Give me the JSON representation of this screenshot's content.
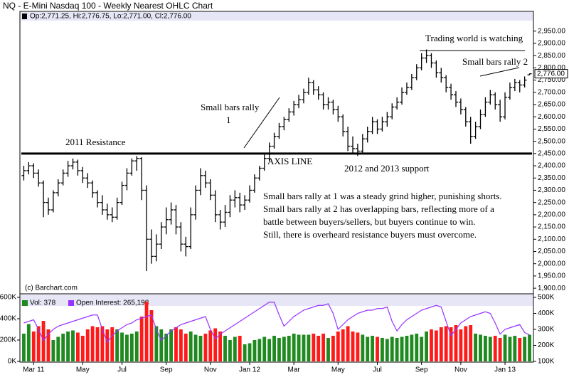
{
  "chart_data": {
    "type": "ohlc",
    "title": "NQ - E-Mini Nasdaq 100 - Weekly Nearest OHLC Chart",
    "info": "Op:2,771.25, Hi:2,776.75, Lo:2,771.00, Cl:2,776.00",
    "credit": "(c) Barchart.com",
    "color": "#000000",
    "ylim": [
      1880,
      2990
    ],
    "yticks": [
      {
        "value": 1900,
        "label": "1,900.00"
      },
      {
        "value": 1950,
        "label": "1,950.00"
      },
      {
        "value": 2000,
        "label": "2,000.00"
      },
      {
        "value": 2050,
        "label": "2,050.00"
      },
      {
        "value": 2100,
        "label": "2,100.00"
      },
      {
        "value": 2150,
        "label": "2,150.00"
      },
      {
        "value": 2200,
        "label": "2,200.00"
      },
      {
        "value": 2250,
        "label": "2,250.00"
      },
      {
        "value": 2300,
        "label": "2,300.00"
      },
      {
        "value": 2350,
        "label": "2,350.00"
      },
      {
        "value": 2400,
        "label": "2,400.00"
      },
      {
        "value": 2450,
        "label": "2,450.00"
      },
      {
        "value": 2500,
        "label": "2,500.00"
      },
      {
        "value": 2550,
        "label": "2,550.00"
      },
      {
        "value": 2600,
        "label": "2,600.00"
      },
      {
        "value": 2650,
        "label": "2,650.00"
      },
      {
        "value": 2700,
        "label": "2,700.00"
      },
      {
        "value": 2750,
        "label": "2,750.00"
      },
      {
        "value": 2800,
        "label": "2,800.00"
      },
      {
        "value": 2850,
        "label": "2,850.00"
      },
      {
        "value": 2900,
        "label": "2,900.00"
      },
      {
        "value": 2950,
        "label": "2,950.00"
      }
    ],
    "last_label": "2,776.00",
    "xticks": [
      {
        "value": 2,
        "label": "Mar 11"
      },
      {
        "value": 12,
        "label": "May"
      },
      {
        "value": 20,
        "label": "Jul"
      },
      {
        "value": 29,
        "label": "Sep"
      },
      {
        "value": 38,
        "label": "Nov"
      },
      {
        "value": 46,
        "label": "Jan 12"
      },
      {
        "value": 55,
        "label": "Mar"
      },
      {
        "value": 64,
        "label": "May"
      },
      {
        "value": 72,
        "label": "Jul"
      },
      {
        "value": 81,
        "label": "Sep"
      },
      {
        "value": 89,
        "label": "Nov"
      },
      {
        "value": 98,
        "label": "Jan 13"
      }
    ],
    "axis_line": 2450,
    "watch_line": 2870,
    "annotations": [
      "Small bars rally",
      "1",
      "2011 Resistance",
      "AXIS LINE",
      "2012 and 2013 support",
      "Trading world is watching",
      "Small bars rally  2"
    ],
    "note_lines": [
      "Small bars rally at 1 was a steady grind higher, punishing shorts.",
      "Small bars rally at 2 has overlapping bars, reflecting more of a",
      "battle between buyers/sellers, but buyers continue to win.",
      "Still, there is overheard resistance buyers must overcome."
    ],
    "ohlc": [
      [
        2360,
        2400,
        2340,
        2380
      ],
      [
        2380,
        2415,
        2365,
        2400
      ],
      [
        2400,
        2410,
        2350,
        2370
      ],
      [
        2370,
        2385,
        2315,
        2330
      ],
      [
        2330,
        2340,
        2190,
        2250
      ],
      [
        2250,
        2270,
        2200,
        2220
      ],
      [
        2220,
        2300,
        2210,
        2290
      ],
      [
        2290,
        2345,
        2275,
        2330
      ],
      [
        2330,
        2385,
        2320,
        2370
      ],
      [
        2370,
        2420,
        2355,
        2400
      ],
      [
        2400,
        2430,
        2385,
        2415
      ],
      [
        2415,
        2425,
        2360,
        2380
      ],
      [
        2380,
        2395,
        2330,
        2350
      ],
      [
        2350,
        2370,
        2310,
        2330
      ],
      [
        2330,
        2340,
        2270,
        2290
      ],
      [
        2290,
        2300,
        2230,
        2250
      ],
      [
        2250,
        2280,
        2200,
        2220
      ],
      [
        2220,
        2245,
        2180,
        2200
      ],
      [
        2200,
        2230,
        2170,
        2190
      ],
      [
        2190,
        2270,
        2180,
        2250
      ],
      [
        2250,
        2335,
        2240,
        2320
      ],
      [
        2320,
        2390,
        2300,
        2370
      ],
      [
        2370,
        2430,
        2360,
        2420
      ],
      [
        2420,
        2440,
        2380,
        2430
      ],
      [
        2430,
        2435,
        2260,
        2300
      ],
      [
        2300,
        2320,
        1970,
        2100
      ],
      [
        2100,
        2140,
        2000,
        2030
      ],
      [
        2030,
        2120,
        2010,
        2080
      ],
      [
        2080,
        2170,
        2060,
        2150
      ],
      [
        2150,
        2230,
        2120,
        2180
      ],
      [
        2180,
        2250,
        2160,
        2220
      ],
      [
        2220,
        2240,
        2120,
        2150
      ],
      [
        2150,
        2170,
        2050,
        2080
      ],
      [
        2080,
        2110,
        2030,
        2070
      ],
      [
        2070,
        2230,
        2060,
        2200
      ],
      [
        2200,
        2320,
        2180,
        2300
      ],
      [
        2300,
        2390,
        2280,
        2360
      ],
      [
        2360,
        2380,
        2310,
        2330
      ],
      [
        2330,
        2345,
        2260,
        2280
      ],
      [
        2280,
        2300,
        2170,
        2200
      ],
      [
        2200,
        2220,
        2140,
        2170
      ],
      [
        2170,
        2240,
        2150,
        2210
      ],
      [
        2210,
        2280,
        2190,
        2260
      ],
      [
        2260,
        2300,
        2230,
        2270
      ],
      [
        2270,
        2290,
        2210,
        2240
      ],
      [
        2240,
        2280,
        2220,
        2260
      ],
      [
        2260,
        2320,
        2250,
        2300
      ],
      [
        2300,
        2365,
        2290,
        2350
      ],
      [
        2350,
        2400,
        2340,
        2390
      ],
      [
        2390,
        2445,
        2380,
        2430
      ],
      [
        2430,
        2495,
        2420,
        2480
      ],
      [
        2480,
        2535,
        2470,
        2520
      ],
      [
        2520,
        2575,
        2510,
        2560
      ],
      [
        2560,
        2600,
        2545,
        2590
      ],
      [
        2590,
        2635,
        2580,
        2620
      ],
      [
        2620,
        2665,
        2605,
        2650
      ],
      [
        2650,
        2690,
        2635,
        2670
      ],
      [
        2670,
        2715,
        2655,
        2700
      ],
      [
        2700,
        2760,
        2690,
        2740
      ],
      [
        2740,
        2750,
        2690,
        2710
      ],
      [
        2710,
        2725,
        2670,
        2690
      ],
      [
        2690,
        2700,
        2630,
        2650
      ],
      [
        2650,
        2680,
        2630,
        2660
      ],
      [
        2660,
        2670,
        2610,
        2630
      ],
      [
        2630,
        2645,
        2580,
        2600
      ],
      [
        2600,
        2610,
        2520,
        2540
      ],
      [
        2540,
        2560,
        2460,
        2480
      ],
      [
        2480,
        2520,
        2450,
        2470
      ],
      [
        2470,
        2490,
        2440,
        2460
      ],
      [
        2460,
        2530,
        2450,
        2510
      ],
      [
        2510,
        2560,
        2495,
        2540
      ],
      [
        2540,
        2600,
        2530,
        2580
      ],
      [
        2580,
        2590,
        2530,
        2550
      ],
      [
        2550,
        2600,
        2540,
        2580
      ],
      [
        2580,
        2620,
        2560,
        2600
      ],
      [
        2600,
        2655,
        2590,
        2640
      ],
      [
        2640,
        2680,
        2630,
        2660
      ],
      [
        2660,
        2720,
        2650,
        2700
      ],
      [
        2700,
        2740,
        2690,
        2720
      ],
      [
        2720,
        2775,
        2710,
        2760
      ],
      [
        2760,
        2815,
        2750,
        2800
      ],
      [
        2800,
        2860,
        2790,
        2840
      ],
      [
        2840,
        2875,
        2820,
        2850
      ],
      [
        2850,
        2860,
        2800,
        2820
      ],
      [
        2820,
        2830,
        2760,
        2780
      ],
      [
        2780,
        2800,
        2740,
        2760
      ],
      [
        2760,
        2770,
        2700,
        2720
      ],
      [
        2720,
        2735,
        2670,
        2690
      ],
      [
        2690,
        2705,
        2640,
        2660
      ],
      [
        2660,
        2675,
        2610,
        2630
      ],
      [
        2630,
        2640,
        2560,
        2580
      ],
      [
        2580,
        2600,
        2490,
        2520
      ],
      [
        2520,
        2580,
        2510,
        2560
      ],
      [
        2560,
        2630,
        2550,
        2610
      ],
      [
        2610,
        2680,
        2600,
        2660
      ],
      [
        2660,
        2710,
        2650,
        2690
      ],
      [
        2690,
        2700,
        2630,
        2650
      ],
      [
        2650,
        2670,
        2580,
        2600
      ],
      [
        2600,
        2700,
        2590,
        2680
      ],
      [
        2680,
        2740,
        2670,
        2720
      ],
      [
        2720,
        2755,
        2705,
        2740
      ],
      [
        2740,
        2750,
        2700,
        2730
      ],
      [
        2730,
        2765,
        2720,
        2750
      ],
      [
        2771.25,
        2776.75,
        2771,
        2776
      ]
    ],
    "volume": {
      "type": "bar",
      "legend": "Vol: 378",
      "up_color": "#1f8a1f",
      "down_color": "#ff1a1a",
      "ylim": [
        0,
        600
      ],
      "yticks": [
        {
          "value": 0,
          "label": "0K"
        },
        {
          "value": 200,
          "label": "200K"
        },
        {
          "value": 400,
          "label": "400K"
        },
        {
          "value": 600,
          "label": "600K"
        }
      ],
      "values": [
        260,
        350,
        280,
        330,
        380,
        300,
        200,
        230,
        260,
        280,
        290,
        270,
        240,
        300,
        330,
        320,
        330,
        300,
        320,
        300,
        270,
        250,
        260,
        280,
        420,
        560,
        480,
        330,
        300,
        260,
        300,
        320,
        300,
        260,
        280,
        250,
        240,
        260,
        290,
        310,
        280,
        240,
        200,
        230,
        240,
        160,
        170,
        200,
        210,
        230,
        210,
        240,
        220,
        230,
        240,
        260,
        250,
        250,
        250,
        260,
        240,
        260,
        220,
        240,
        280,
        300,
        330,
        280,
        270,
        250,
        230,
        240,
        230,
        220,
        210,
        230,
        220,
        230,
        240,
        250,
        260,
        230,
        280,
        300,
        290,
        320,
        330,
        320,
        340,
        300,
        330,
        340,
        260,
        250,
        240,
        230,
        240,
        220,
        250,
        230,
        240,
        220,
        230,
        250
      ]
    },
    "open_interest": {
      "type": "line",
      "legend": "Open Interest: 265,198",
      "color": "#9933ff",
      "ylim": [
        100,
        500
      ],
      "yticks": [
        {
          "value": 100,
          "label": "100K"
        },
        {
          "value": 200,
          "label": "200K"
        },
        {
          "value": 300,
          "label": "300K"
        },
        {
          "value": 400,
          "label": "400K"
        },
        {
          "value": 500,
          "label": "500K"
        }
      ],
      "values": [
        340,
        350,
        360,
        300,
        230,
        270,
        300,
        320,
        330,
        340,
        350,
        360,
        370,
        380,
        390,
        390,
        300,
        220,
        260,
        290,
        310,
        330,
        340,
        360,
        370,
        380,
        390,
        300,
        230,
        260,
        290,
        310,
        330,
        340,
        350,
        360,
        370,
        380,
        300,
        240,
        270,
        290,
        310,
        330,
        350,
        370,
        390,
        410,
        430,
        450,
        470,
        470,
        390,
        320,
        350,
        380,
        400,
        420,
        430,
        440,
        450,
        450,
        460,
        400,
        300,
        330,
        360,
        380,
        400,
        410,
        420,
        420,
        430,
        430,
        440,
        350,
        290,
        330,
        360,
        380,
        400,
        420,
        430,
        440,
        450,
        440,
        350,
        260,
        300,
        340,
        360,
        380,
        390,
        400,
        410,
        400,
        340,
        270,
        300,
        310,
        320,
        330,
        280,
        265
      ]
    }
  }
}
